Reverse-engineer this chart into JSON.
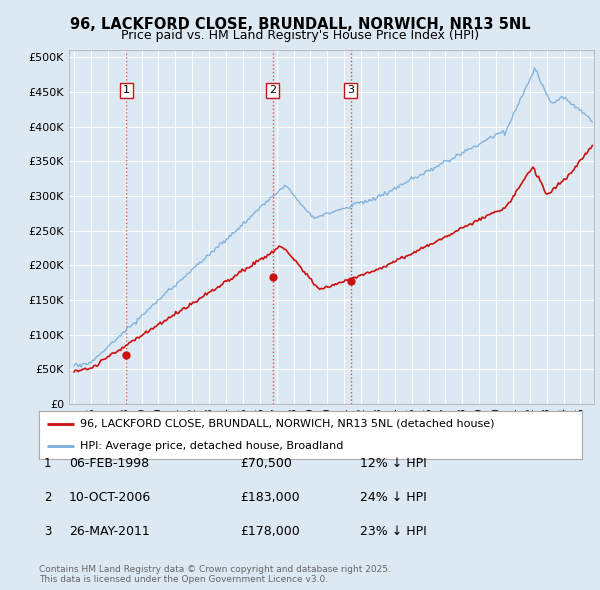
{
  "title": "96, LACKFORD CLOSE, BRUNDALL, NORWICH, NR13 5NL",
  "subtitle": "Price paid vs. HM Land Registry's House Price Index (HPI)",
  "background_color": "#dce8f2",
  "plot_bg_color": "#dce8f2",
  "sale_dates": [
    1998.09,
    2006.77,
    2011.39
  ],
  "sale_prices": [
    70500,
    183000,
    178000
  ],
  "sale_labels": [
    "1",
    "2",
    "3"
  ],
  "hpi_line_color": "#7aaddb",
  "price_line_color": "#cc1111",
  "yticks": [
    0,
    50000,
    100000,
    150000,
    200000,
    250000,
    300000,
    350000,
    400000,
    450000,
    500000
  ],
  "ytick_labels": [
    "£0",
    "£50K",
    "£100K",
    "£150K",
    "£200K",
    "£250K",
    "£300K",
    "£350K",
    "£400K",
    "£450K",
    "£500K"
  ],
  "xmin": 1994.7,
  "xmax": 2025.8,
  "ymin": 0,
  "ymax": 510000,
  "legend_entry1": "96, LACKFORD CLOSE, BRUNDALL, NORWICH, NR13 5NL (detached house)",
  "legend_entry2": "HPI: Average price, detached house, Broadland",
  "table_rows": [
    {
      "num": "1",
      "date": "06-FEB-1998",
      "price": "£70,500",
      "pct": "12% ↓ HPI"
    },
    {
      "num": "2",
      "date": "10-OCT-2006",
      "price": "£183,000",
      "pct": "24% ↓ HPI"
    },
    {
      "num": "3",
      "date": "26-MAY-2011",
      "price": "£178,000",
      "pct": "23% ↓ HPI"
    }
  ],
  "footer": "Contains HM Land Registry data © Crown copyright and database right 2025.\nThis data is licensed under the Open Government Licence v3.0."
}
